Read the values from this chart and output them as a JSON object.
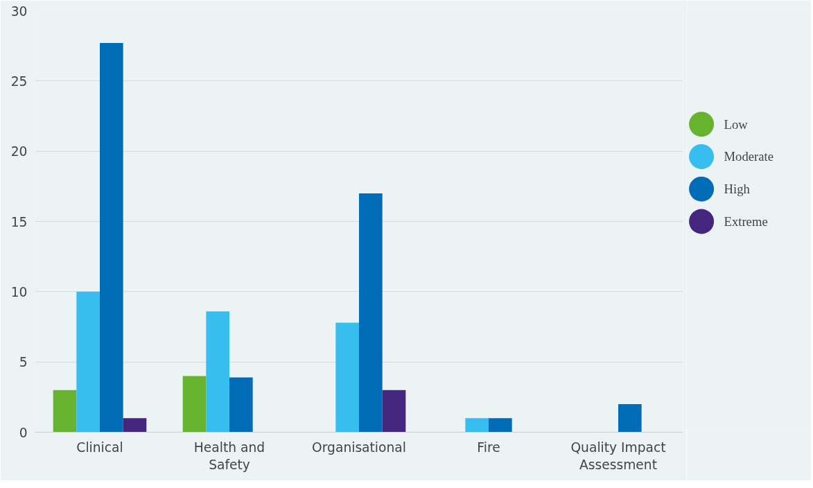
{
  "chart_data": {
    "type": "bar",
    "categories": [
      "Clinical",
      "Health and\nSafety",
      "Organisational",
      "Fire",
      "Quality Impact\nAssessment"
    ],
    "series": [
      {
        "name": "Low",
        "color": "#67b22f",
        "values": [
          3,
          4,
          null,
          null,
          null
        ]
      },
      {
        "name": "Moderate",
        "color": "#38bdef",
        "values": [
          10,
          8.6,
          7.8,
          1,
          null
        ]
      },
      {
        "name": "High",
        "color": "#006cb7",
        "values": [
          27.7,
          3.9,
          17,
          1,
          2
        ]
      },
      {
        "name": "Extreme",
        "color": "#45267f",
        "values": [
          1,
          null,
          3,
          null,
          null
        ]
      }
    ],
    "ylim": [
      0,
      30
    ],
    "yticks": [
      0,
      5,
      10,
      15,
      20,
      25,
      30
    ],
    "grid": "y",
    "legend": "right",
    "marker": "circle"
  }
}
